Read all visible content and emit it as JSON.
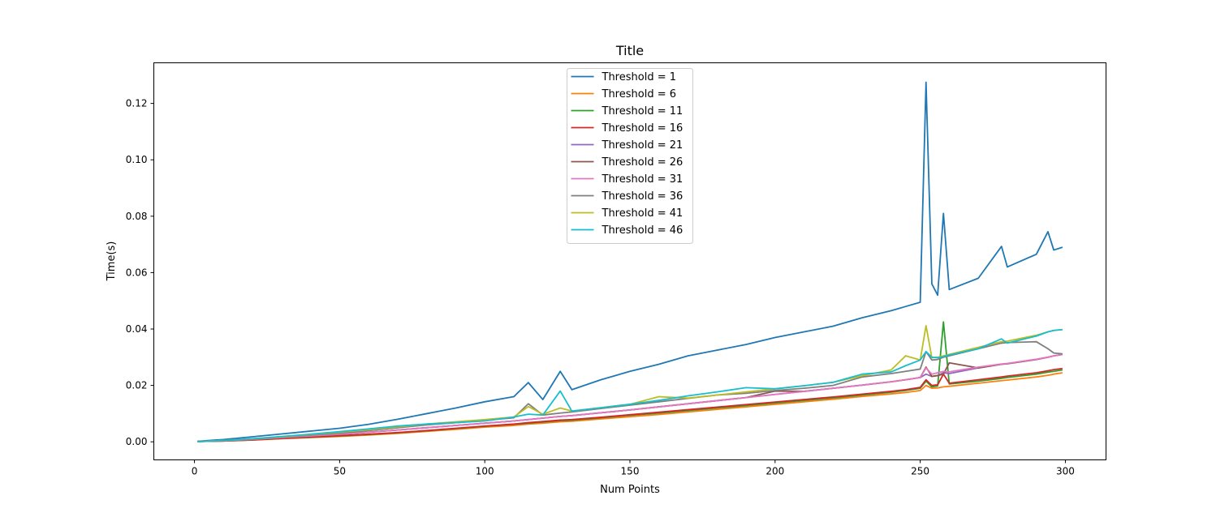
{
  "chart_data": {
    "type": "line",
    "title": "Title",
    "xlabel": "Num Points",
    "ylabel": "Time(s)",
    "xlim": [
      -14,
      314
    ],
    "ylim": [
      -0.0064,
      0.1344
    ],
    "xticks": [
      0,
      50,
      100,
      150,
      200,
      250,
      300
    ],
    "xtick_labels": [
      "0",
      "50",
      "100",
      "150",
      "200",
      "250",
      "300"
    ],
    "yticks": [
      0.0,
      0.02,
      0.04,
      0.06,
      0.08,
      0.1,
      0.12
    ],
    "ytick_labels": [
      "0.00",
      "0.02",
      "0.04",
      "0.06",
      "0.08",
      "0.10",
      "0.12"
    ],
    "grid": false,
    "legend_position": "top-center",
    "x": [
      1,
      10,
      20,
      30,
      40,
      50,
      60,
      70,
      80,
      90,
      100,
      110,
      115,
      120,
      126,
      130,
      140,
      150,
      160,
      170,
      180,
      190,
      200,
      210,
      220,
      230,
      240,
      245,
      250,
      252,
      254,
      256,
      258,
      260,
      270,
      278,
      280,
      290,
      294,
      296,
      299
    ],
    "series": [
      {
        "name": "Threshold = 1",
        "color": "#1f77b4",
        "values": [
          0.0002,
          0.0008,
          0.0018,
          0.0028,
          0.0038,
          0.0048,
          0.0062,
          0.008,
          0.01,
          0.012,
          0.0142,
          0.016,
          0.021,
          0.015,
          0.025,
          0.0185,
          0.022,
          0.025,
          0.0275,
          0.0305,
          0.0325,
          0.0345,
          0.037,
          0.039,
          0.041,
          0.044,
          0.0465,
          0.048,
          0.0495,
          0.1275,
          0.056,
          0.052,
          0.081,
          0.054,
          0.058,
          0.0693,
          0.062,
          0.0665,
          0.0745,
          0.068,
          0.069
        ]
      },
      {
        "name": "Threshold = 6",
        "color": "#ff7f0e",
        "values": [
          0.0001,
          0.0003,
          0.0006,
          0.0011,
          0.0015,
          0.0019,
          0.0024,
          0.003,
          0.0037,
          0.0044,
          0.0052,
          0.0058,
          0.0063,
          0.0066,
          0.0071,
          0.0073,
          0.0081,
          0.0089,
          0.0097,
          0.0106,
          0.0115,
          0.0124,
          0.0133,
          0.0142,
          0.0151,
          0.0161,
          0.017,
          0.0175,
          0.0182,
          0.02,
          0.019,
          0.0191,
          0.0195,
          0.0197,
          0.0208,
          0.0217,
          0.0219,
          0.023,
          0.0236,
          0.024,
          0.0245
        ]
      },
      {
        "name": "Threshold = 11",
        "color": "#2ca02c",
        "values": [
          0.0001,
          0.0003,
          0.0007,
          0.0012,
          0.0016,
          0.0021,
          0.0026,
          0.0032,
          0.0039,
          0.0047,
          0.0055,
          0.0062,
          0.0066,
          0.007,
          0.0075,
          0.0077,
          0.0085,
          0.0094,
          0.0102,
          0.0111,
          0.012,
          0.0129,
          0.0138,
          0.0147,
          0.0156,
          0.0166,
          0.0176,
          0.0182,
          0.019,
          0.0215,
          0.0195,
          0.0198,
          0.0425,
          0.0205,
          0.0215,
          0.0225,
          0.0228,
          0.024,
          0.0247,
          0.025,
          0.0255
        ]
      },
      {
        "name": "Threshold = 16",
        "color": "#d62728",
        "values": [
          0.0001,
          0.0003,
          0.0007,
          0.0012,
          0.0017,
          0.0022,
          0.0027,
          0.0033,
          0.004,
          0.0048,
          0.0056,
          0.0063,
          0.0068,
          0.0072,
          0.0077,
          0.0079,
          0.0087,
          0.0096,
          0.0105,
          0.0114,
          0.0123,
          0.0132,
          0.0141,
          0.015,
          0.0159,
          0.0169,
          0.0179,
          0.0185,
          0.0193,
          0.022,
          0.02,
          0.0202,
          0.024,
          0.0208,
          0.022,
          0.023,
          0.0233,
          0.0245,
          0.0252,
          0.0256,
          0.026
        ]
      },
      {
        "name": "Threshold = 21",
        "color": "#9467bd",
        "values": [
          0.0001,
          0.0004,
          0.0009,
          0.0015,
          0.0021,
          0.0027,
          0.0034,
          0.0042,
          0.005,
          0.0058,
          0.0066,
          0.0074,
          0.0079,
          0.0084,
          0.009,
          0.0093,
          0.0103,
          0.0113,
          0.0124,
          0.0135,
          0.0146,
          0.0157,
          0.0168,
          0.0179,
          0.019,
          0.0201,
          0.0213,
          0.022,
          0.0228,
          0.024,
          0.0232,
          0.0235,
          0.0245,
          0.0242,
          0.0262,
          0.0275,
          0.0277,
          0.0292,
          0.03,
          0.0305,
          0.031
        ]
      },
      {
        "name": "Threshold = 26",
        "color": "#8c564b",
        "values": [
          0.0001,
          0.0004,
          0.0009,
          0.0015,
          0.0021,
          0.0027,
          0.0034,
          0.0042,
          0.005,
          0.0058,
          0.0066,
          0.0074,
          0.0079,
          0.0084,
          0.009,
          0.0093,
          0.0103,
          0.0113,
          0.0124,
          0.0135,
          0.0146,
          0.0157,
          0.018,
          0.0179,
          0.019,
          0.0201,
          0.0213,
          0.022,
          0.0228,
          0.0265,
          0.0232,
          0.0235,
          0.024,
          0.028,
          0.0262,
          0.0275,
          0.0277,
          0.0292,
          0.03,
          0.0305,
          0.031
        ]
      },
      {
        "name": "Threshold = 31",
        "color": "#e377c2",
        "values": [
          0.0001,
          0.0004,
          0.0009,
          0.0015,
          0.0021,
          0.0027,
          0.0034,
          0.0042,
          0.005,
          0.0058,
          0.0066,
          0.0074,
          0.0079,
          0.0084,
          0.009,
          0.0093,
          0.0103,
          0.0113,
          0.0124,
          0.0135,
          0.0146,
          0.0157,
          0.0168,
          0.0179,
          0.019,
          0.0201,
          0.0213,
          0.022,
          0.0228,
          0.0262,
          0.024,
          0.0245,
          0.025,
          0.0248,
          0.0265,
          0.0276,
          0.0278,
          0.0293,
          0.03,
          0.0305,
          0.031
        ]
      },
      {
        "name": "Threshold = 36",
        "color": "#7f7f7f",
        "values": [
          0.0001,
          0.0005,
          0.001,
          0.0017,
          0.0024,
          0.0031,
          0.004,
          0.005,
          0.006,
          0.0068,
          0.0076,
          0.0085,
          0.0135,
          0.0095,
          0.0102,
          0.0106,
          0.0118,
          0.013,
          0.0142,
          0.0154,
          0.0166,
          0.0172,
          0.0182,
          0.019,
          0.02,
          0.023,
          0.0242,
          0.025,
          0.0258,
          0.032,
          0.029,
          0.0292,
          0.03,
          0.0305,
          0.033,
          0.035,
          0.0352,
          0.0355,
          0.033,
          0.0315,
          0.0312
        ]
      },
      {
        "name": "Threshold = 41",
        "color": "#bcbd22",
        "values": [
          0.0001,
          0.0005,
          0.0011,
          0.0018,
          0.0026,
          0.0034,
          0.0043,
          0.0053,
          0.0063,
          0.0071,
          0.0079,
          0.0088,
          0.0125,
          0.0098,
          0.012,
          0.0109,
          0.0121,
          0.0133,
          0.016,
          0.0155,
          0.0166,
          0.0177,
          0.0188,
          0.0199,
          0.0211,
          0.0234,
          0.0255,
          0.0305,
          0.029,
          0.0412,
          0.0298,
          0.03,
          0.0305,
          0.031,
          0.0335,
          0.0355,
          0.0357,
          0.0378,
          0.039,
          0.0395,
          0.0398
        ]
      },
      {
        "name": "Threshold = 46",
        "color": "#17becf",
        "values": [
          0.0001,
          0.0005,
          0.0011,
          0.0019,
          0.0027,
          0.0036,
          0.0046,
          0.0056,
          0.0063,
          0.0068,
          0.0074,
          0.0088,
          0.0098,
          0.0095,
          0.018,
          0.0109,
          0.0121,
          0.0133,
          0.0147,
          0.0163,
          0.0177,
          0.0192,
          0.0188,
          0.0199,
          0.0211,
          0.024,
          0.0248,
          0.027,
          0.029,
          0.032,
          0.03,
          0.0298,
          0.0302,
          0.0308,
          0.033,
          0.0365,
          0.035,
          0.0375,
          0.039,
          0.0395,
          0.0398
        ]
      }
    ]
  }
}
